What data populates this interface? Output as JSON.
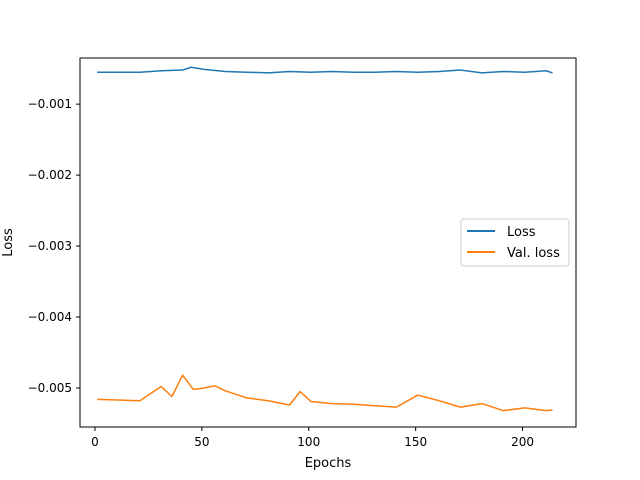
{
  "chart_data": {
    "type": "line",
    "title": "",
    "xlabel": "Epochs",
    "ylabel": "Loss",
    "xlim": [
      -7,
      225
    ],
    "ylim": [
      -0.00555,
      -0.00035
    ],
    "xticks": [
      0,
      50,
      100,
      150,
      200
    ],
    "yticks": [
      -0.001,
      -0.002,
      -0.003,
      -0.004,
      -0.005
    ],
    "xtick_labels": [
      "0",
      "50",
      "100",
      "150",
      "200"
    ],
    "ytick_labels": [
      "−0.001",
      "−0.002",
      "−0.003",
      "−0.004",
      "−0.005"
    ],
    "grid": false,
    "legend_position": "center-right",
    "series": [
      {
        "name": "Loss",
        "color": "#1f77b4",
        "x": [
          1,
          11,
          21,
          31,
          41,
          45,
          51,
          61,
          71,
          81,
          91,
          101,
          111,
          121,
          131,
          141,
          151,
          161,
          171,
          181,
          191,
          201,
          211,
          214
        ],
        "y": [
          -0.00055,
          -0.00055,
          -0.00055,
          -0.00053,
          -0.00052,
          -0.00048,
          -0.00051,
          -0.00054,
          -0.00055,
          -0.00056,
          -0.00054,
          -0.00055,
          -0.00054,
          -0.00055,
          -0.00055,
          -0.00054,
          -0.00055,
          -0.00054,
          -0.00052,
          -0.00056,
          -0.00054,
          -0.00055,
          -0.00053,
          -0.00056
        ]
      },
      {
        "name": "Val. loss",
        "color": "#ff7f0e",
        "x": [
          1,
          11,
          21,
          31,
          36,
          41,
          46,
          51,
          56,
          61,
          71,
          81,
          91,
          96,
          101,
          111,
          121,
          131,
          141,
          151,
          161,
          171,
          181,
          191,
          201,
          211,
          214
        ],
        "y": [
          -0.00516,
          -0.00517,
          -0.00518,
          -0.00498,
          -0.00512,
          -0.00482,
          -0.00502,
          -0.005,
          -0.00497,
          -0.00504,
          -0.00514,
          -0.00518,
          -0.00524,
          -0.00505,
          -0.00519,
          -0.00522,
          -0.00523,
          -0.00525,
          -0.00527,
          -0.0051,
          -0.00518,
          -0.00527,
          -0.00522,
          -0.00532,
          -0.00528,
          -0.00532,
          -0.00531
        ]
      }
    ]
  }
}
